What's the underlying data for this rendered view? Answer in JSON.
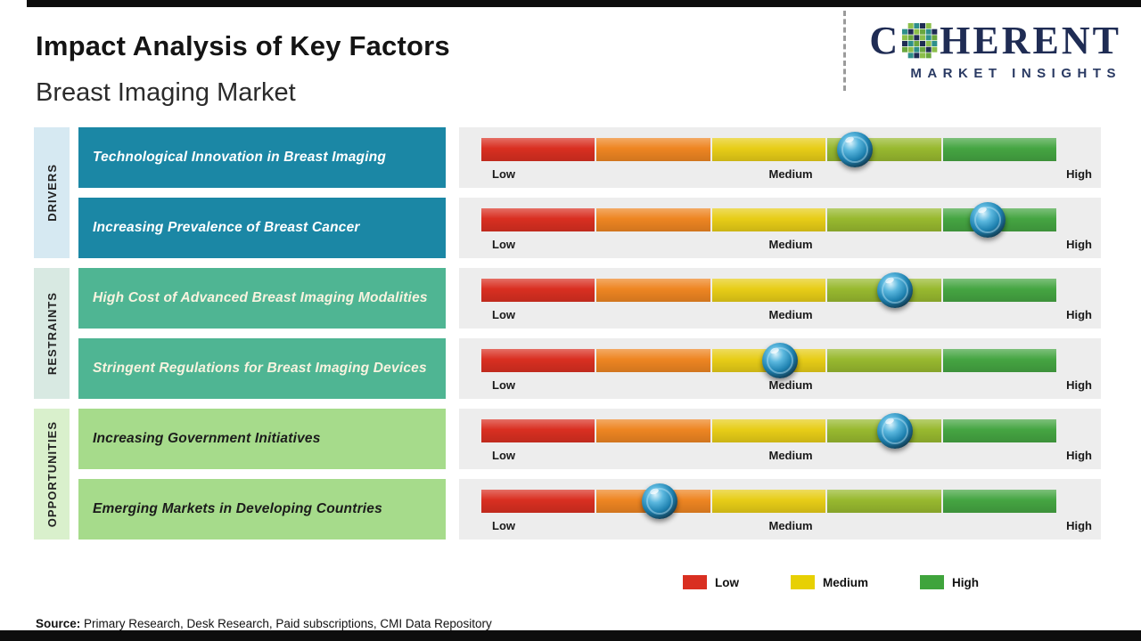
{
  "header": {
    "title": "Impact Analysis of Key Factors",
    "subtitle": "Breast Imaging Market"
  },
  "logo": {
    "brand_prefix": "C",
    "brand_suffix": "HERENT",
    "brand_subtitle": "MARKET INSIGHTS"
  },
  "chart_data": {
    "type": "bar",
    "title": "Impact Analysis of Key Factors",
    "subtitle": "Breast Imaging Market",
    "axis_labels": [
      "Low",
      "Medium",
      "High"
    ],
    "groups": [
      {
        "name": "DRIVERS"
      },
      {
        "name": "RESTRAINTS"
      },
      {
        "name": "OPPORTUNITIES"
      }
    ],
    "rows": [
      {
        "group": "drivers",
        "label": "Technological Innovation in Breast Imaging",
        "impact_pct": 65,
        "impact_level": "Medium-High"
      },
      {
        "group": "drivers",
        "label": "Increasing Prevalence of Breast Cancer",
        "impact_pct": 88,
        "impact_level": "High"
      },
      {
        "group": "restraints",
        "label": "High Cost of Advanced Breast Imaging Modalities",
        "impact_pct": 72,
        "impact_level": "Medium-High"
      },
      {
        "group": "restraints",
        "label": "Stringent Regulations for Breast Imaging Devices",
        "impact_pct": 52,
        "impact_level": "Medium"
      },
      {
        "group": "opportunities",
        "label": "Increasing Government Initiatives",
        "impact_pct": 72,
        "impact_level": "Medium-High"
      },
      {
        "group": "opportunities",
        "label": "Emerging Markets in Developing Countries",
        "impact_pct": 31,
        "impact_level": "Low-Medium"
      }
    ],
    "bar_segment_colors": [
      "#d92f21",
      "#ee8522",
      "#e7cd17",
      "#98b92f",
      "#45a542"
    ],
    "legend": [
      {
        "label": "Low",
        "color": "#d92f21"
      },
      {
        "label": "Medium",
        "color": "#e7d003"
      },
      {
        "label": "High",
        "color": "#3fa43c"
      }
    ]
  },
  "colors": {
    "group_fill": {
      "drivers": "#1b87a5",
      "restraints": "#4fb593",
      "opportunities": "#a6db8b"
    },
    "group_text": {
      "drivers": "#ffffff",
      "restraints": "#f8f3df",
      "opportunities": "#1b1b1b"
    },
    "group_side_fill": {
      "drivers": "#d6e9f2",
      "restraints": "#d8e9e2",
      "opportunities": "#d9f0cc"
    },
    "brand_navy": "#1f2c54",
    "marker_blue": "#1d80af"
  },
  "footer": {
    "source_label": "Source:",
    "source_text": "Primary Research, Desk Research, Paid subscriptions, CMI Data Repository"
  }
}
